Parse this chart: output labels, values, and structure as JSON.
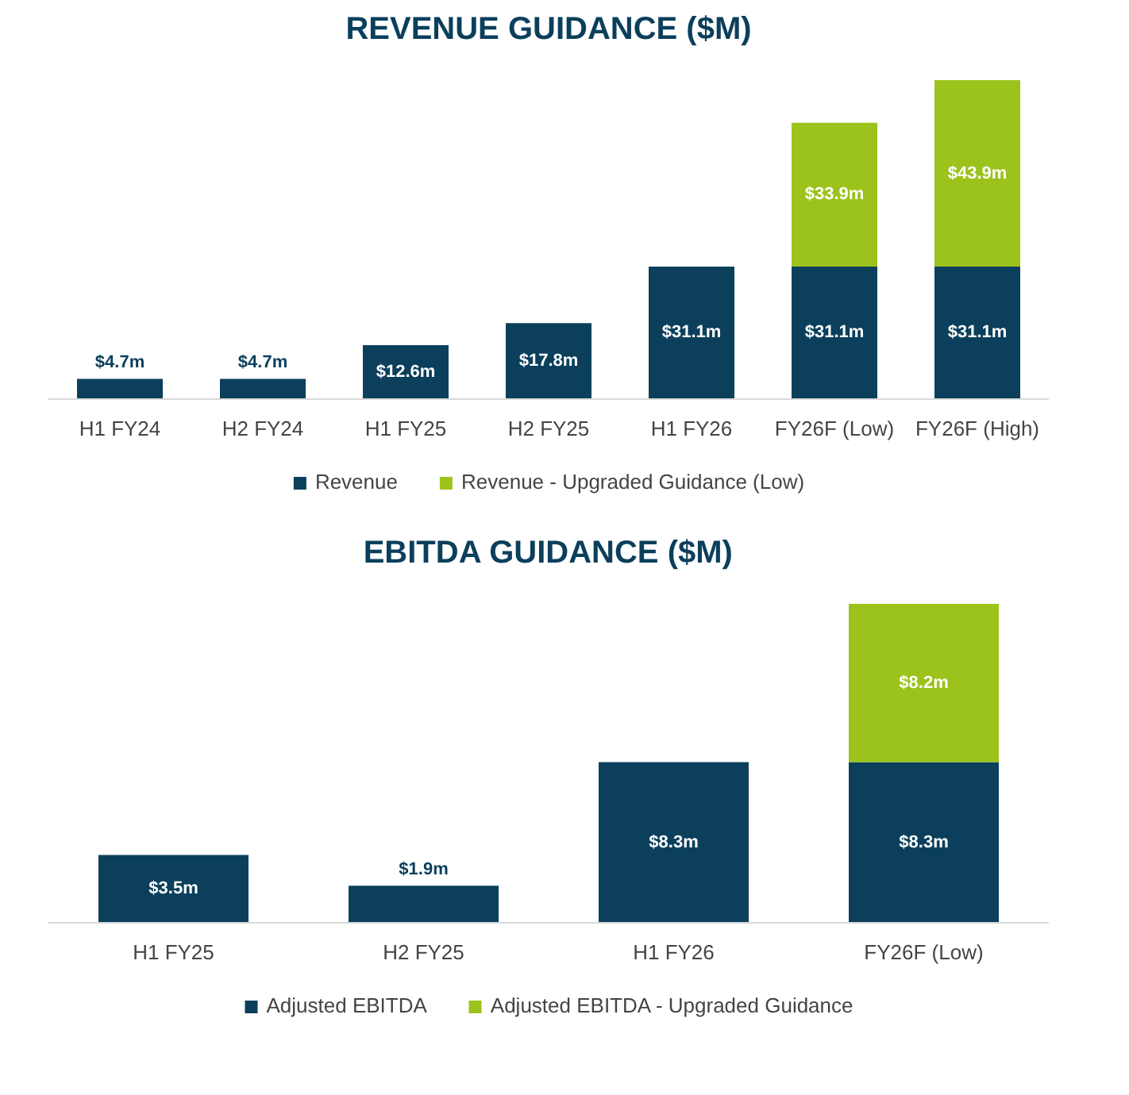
{
  "chart_data": [
    {
      "type": "bar",
      "title": "REVENUE GUIDANCE ($M)",
      "categories": [
        "H1 FY24",
        "H2 FY24",
        "H1 FY25",
        "H2 FY25",
        "H1 FY26",
        "FY26F (Low)",
        "FY26F (High)"
      ],
      "stacked": true,
      "tick_labels": "x",
      "grid": false,
      "legend": "bottom",
      "series": [
        {
          "name": "Revenue",
          "color": "#0b3f5c",
          "values": [
            4.7,
            4.7,
            12.6,
            17.8,
            31.1,
            31.1,
            31.1
          ],
          "value_labels": [
            "$4.7m",
            "$4.7m",
            "$12.6m",
            "$17.8m",
            "$31.1m",
            "$31.1m",
            "$31.1m"
          ]
        },
        {
          "name": "Revenue - Upgraded Guidance (Low)",
          "color": "#9cc31c",
          "values": [
            null,
            null,
            null,
            null,
            null,
            33.9,
            43.9
          ],
          "value_labels": [
            null,
            null,
            null,
            null,
            null,
            "$33.9m",
            "$43.9m"
          ]
        }
      ]
    },
    {
      "type": "bar",
      "title": "EBITDA GUIDANCE ($M)",
      "categories": [
        "H1 FY25",
        "H2 FY25",
        "H1 FY26",
        "FY26F (Low)"
      ],
      "stacked": true,
      "tick_labels": "x",
      "grid": false,
      "legend": "bottom",
      "series": [
        {
          "name": "Adjusted EBITDA",
          "color": "#0b3f5c",
          "values": [
            3.5,
            1.9,
            8.3,
            8.3
          ],
          "value_labels": [
            "$3.5m",
            "$1.9m",
            "$8.3m",
            "$8.3m"
          ]
        },
        {
          "name": "Adjusted EBITDA - Upgraded Guidance",
          "color": "#9cc31c",
          "values": [
            null,
            null,
            null,
            8.2
          ],
          "value_labels": [
            null,
            null,
            null,
            "$8.2m"
          ]
        }
      ]
    }
  ]
}
